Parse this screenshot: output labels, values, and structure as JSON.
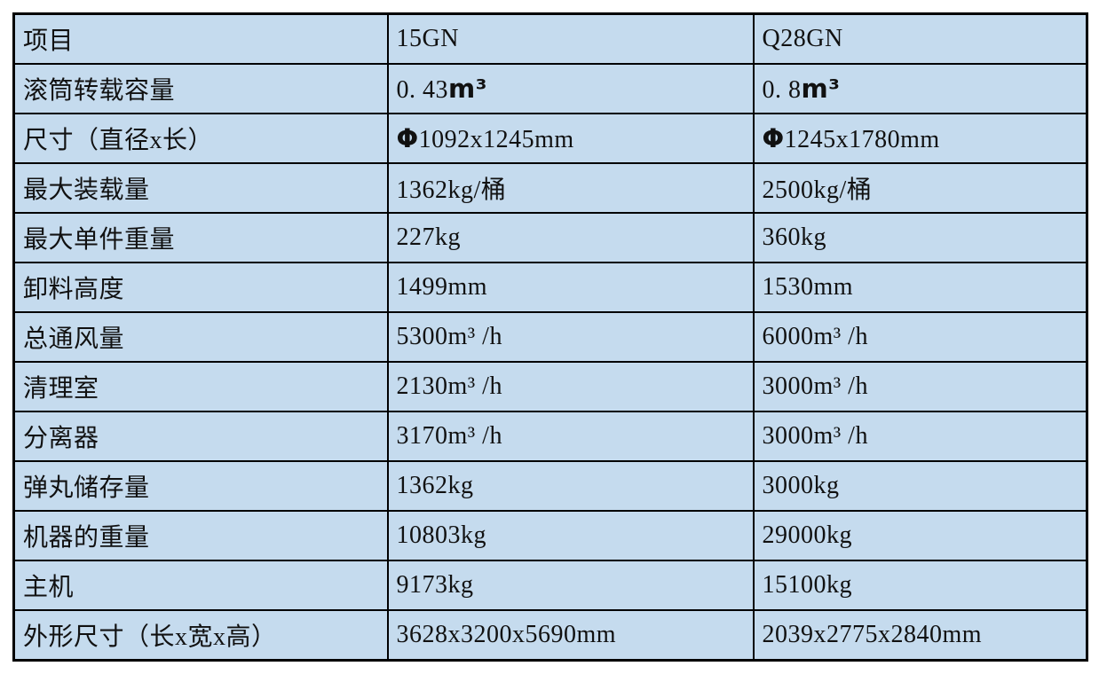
{
  "table": {
    "cell_background": "#c5dbee",
    "border_color": "#000000",
    "text_color": "#111111",
    "columns": {
      "label_header": "项目",
      "model_1": "15GN",
      "model_2": "Q28GN"
    },
    "rows": [
      {
        "label": "项目",
        "c1": "15GN",
        "c2": "Q28GN"
      },
      {
        "label": "滚筒转载容量",
        "c1": "0. 43",
        "c1u": "m³",
        "c2": "0. 8",
        "c2u": "m³"
      },
      {
        "label": "尺寸（直径x长）",
        "c1p": "Φ",
        "c1": "1092x1245mm",
        "c2p": "Φ",
        "c2": "1245x1780mm"
      },
      {
        "label": "最大装载量",
        "c1": "1362kg/桶",
        "c2": "2500kg/桶"
      },
      {
        "label": "最大单件重量",
        "c1": "227kg",
        "c2": "360kg"
      },
      {
        "label": "卸料高度",
        "c1": "1499mm",
        "c2": "1530mm"
      },
      {
        "label": "总通风量",
        "c1": "5300m³ /h",
        "c2": "6000m³ /h"
      },
      {
        "label": "清理室",
        "c1": "2130m³ /h",
        "c2": "3000m³ /h"
      },
      {
        "label": "分离器",
        "c1": "3170m³ /h",
        "c2": "3000m³ /h"
      },
      {
        "label": "弹丸储存量",
        "c1": "1362kg",
        "c2": "3000kg"
      },
      {
        "label": "机器的重量",
        "c1": "10803kg",
        "c2": "29000kg"
      },
      {
        "label": "主机",
        "c1": "9173kg",
        "c2": "15100kg"
      },
      {
        "label": "外形尺寸（长x宽x高）",
        "c1": "3628x3200x5690mm",
        "c2": "2039x2775x2840mm"
      }
    ]
  }
}
